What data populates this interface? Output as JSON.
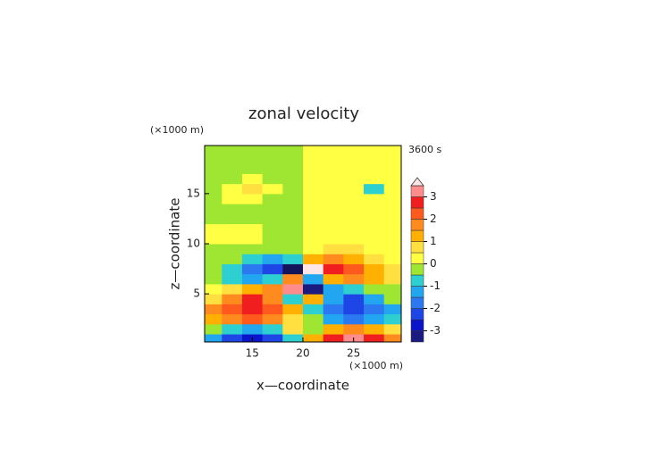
{
  "chart_data": {
    "type": "contour",
    "title": "zonal velocity",
    "x_label": "x—coordinate",
    "y_label": "z—coordinate",
    "x_unit": "(×1000 m)",
    "y_unit": "(×1000 m)",
    "time_label": "3600 s",
    "x": [
      11,
      13,
      15,
      17,
      19,
      21,
      23,
      25,
      27,
      29
    ],
    "y": [
      0.5,
      1.5,
      2.5,
      3.5,
      4.5,
      5.5,
      6.5,
      7.5,
      8.5,
      9.5,
      10.5,
      11.5,
      12.5,
      13.5,
      14.5,
      15.5,
      16.5,
      17.5,
      18.5,
      19.5
    ],
    "values": [
      [
        -1.5,
        -2.5,
        -3,
        -2.5,
        -1,
        1,
        2.5,
        3,
        2.5,
        1.5
      ],
      [
        -0.5,
        -1,
        -1.5,
        -1,
        0.5,
        -0.5,
        1,
        1.5,
        1,
        0.5
      ],
      [
        1,
        1.5,
        2,
        1.5,
        0.5,
        -0.5,
        -1.5,
        -2,
        -1.5,
        -1
      ],
      [
        1.5,
        2,
        2.5,
        2,
        1,
        -1,
        -2,
        -2.5,
        -2,
        -1.5
      ],
      [
        0.5,
        1.5,
        2.5,
        1.5,
        -1,
        1,
        -1.5,
        -2.5,
        -1.5,
        -0.5
      ],
      [
        0.2,
        0.5,
        1,
        1.5,
        3.2,
        -3.2,
        -1.5,
        -1,
        -0.5,
        -0.2
      ],
      [
        -0.5,
        -1,
        -1.5,
        -1,
        1.5,
        -1.5,
        1,
        1.5,
        1,
        0.5
      ],
      [
        -0.5,
        -1,
        -2,
        -2.5,
        -3.6,
        3.6,
        2.5,
        2,
        1,
        0.5
      ],
      [
        -0.3,
        -0.5,
        -1,
        -1.5,
        -1,
        1,
        1.5,
        1,
        0.5,
        0.3
      ],
      [
        -0.2,
        -0.3,
        -0.5,
        -0.5,
        -0.3,
        0.3,
        0.5,
        0.5,
        0.3,
        0.2
      ],
      [
        0.2,
        0.2,
        0.1,
        -0.2,
        -0.2,
        0.2,
        0.2,
        0.2,
        0.2,
        0.2
      ],
      [
        0.2,
        0.2,
        0.1,
        -0.2,
        -0.2,
        0.2,
        0.2,
        0.2,
        0.2,
        0.2
      ],
      [
        -0.2,
        -0.2,
        -0.2,
        -0.2,
        -0.2,
        0.2,
        0.2,
        0.2,
        0.2,
        0.2
      ],
      [
        -0.2,
        -0.2,
        -0.2,
        -0.2,
        -0.2,
        0.2,
        0.2,
        0.2,
        0.2,
        0.2
      ],
      [
        -0.2,
        0.2,
        0.2,
        -0.2,
        -0.2,
        0.2,
        0.2,
        0.2,
        0.2,
        0.2
      ],
      [
        -0.2,
        0.2,
        0.7,
        0.2,
        -0.2,
        0.2,
        0.2,
        0.2,
        -0.7,
        0.2
      ],
      [
        -0.2,
        -0.2,
        0.2,
        -0.2,
        -0.2,
        0.2,
        0.2,
        0.2,
        0.2,
        0.2
      ],
      [
        -0.2,
        -0.2,
        -0.2,
        -0.2,
        -0.2,
        0.2,
        0.2,
        0.2,
        0.2,
        0.2
      ],
      [
        -0.2,
        -0.2,
        -0.2,
        -0.2,
        -0.2,
        0.2,
        0.2,
        0.2,
        0.2,
        0.2
      ],
      [
        -0.2,
        -0.2,
        -0.2,
        -0.2,
        -0.2,
        0.2,
        0.2,
        0.2,
        0.2,
        0.2
      ]
    ],
    "xlim": [
      10.3,
      29.7
    ],
    "ylim": [
      0.2,
      19.8
    ],
    "xticks": [
      15,
      20,
      25
    ],
    "yticks": [
      5,
      10,
      15
    ],
    "levels": [
      -3.5,
      -3,
      -2.5,
      -2,
      -1.5,
      -1,
      -0.5,
      0,
      0.5,
      1,
      1.5,
      2,
      2.5,
      3,
      3.5
    ],
    "colors": [
      "#1a1a80",
      "#0a14c8",
      "#1e46e6",
      "#2c78f0",
      "#22a6f0",
      "#2ecfd0",
      "#9ee632",
      "#ffff44",
      "#ffe040",
      "#ffb000",
      "#ff8a1e",
      "#ff5a1e",
      "#f01e1e",
      "#ff8c8c"
    ],
    "extend_low_color": "#14145a",
    "extend_high_color": "#ffe6e6",
    "colorbar_ticks": [
      -3,
      -2,
      -1,
      0,
      1,
      2,
      3
    ]
  }
}
